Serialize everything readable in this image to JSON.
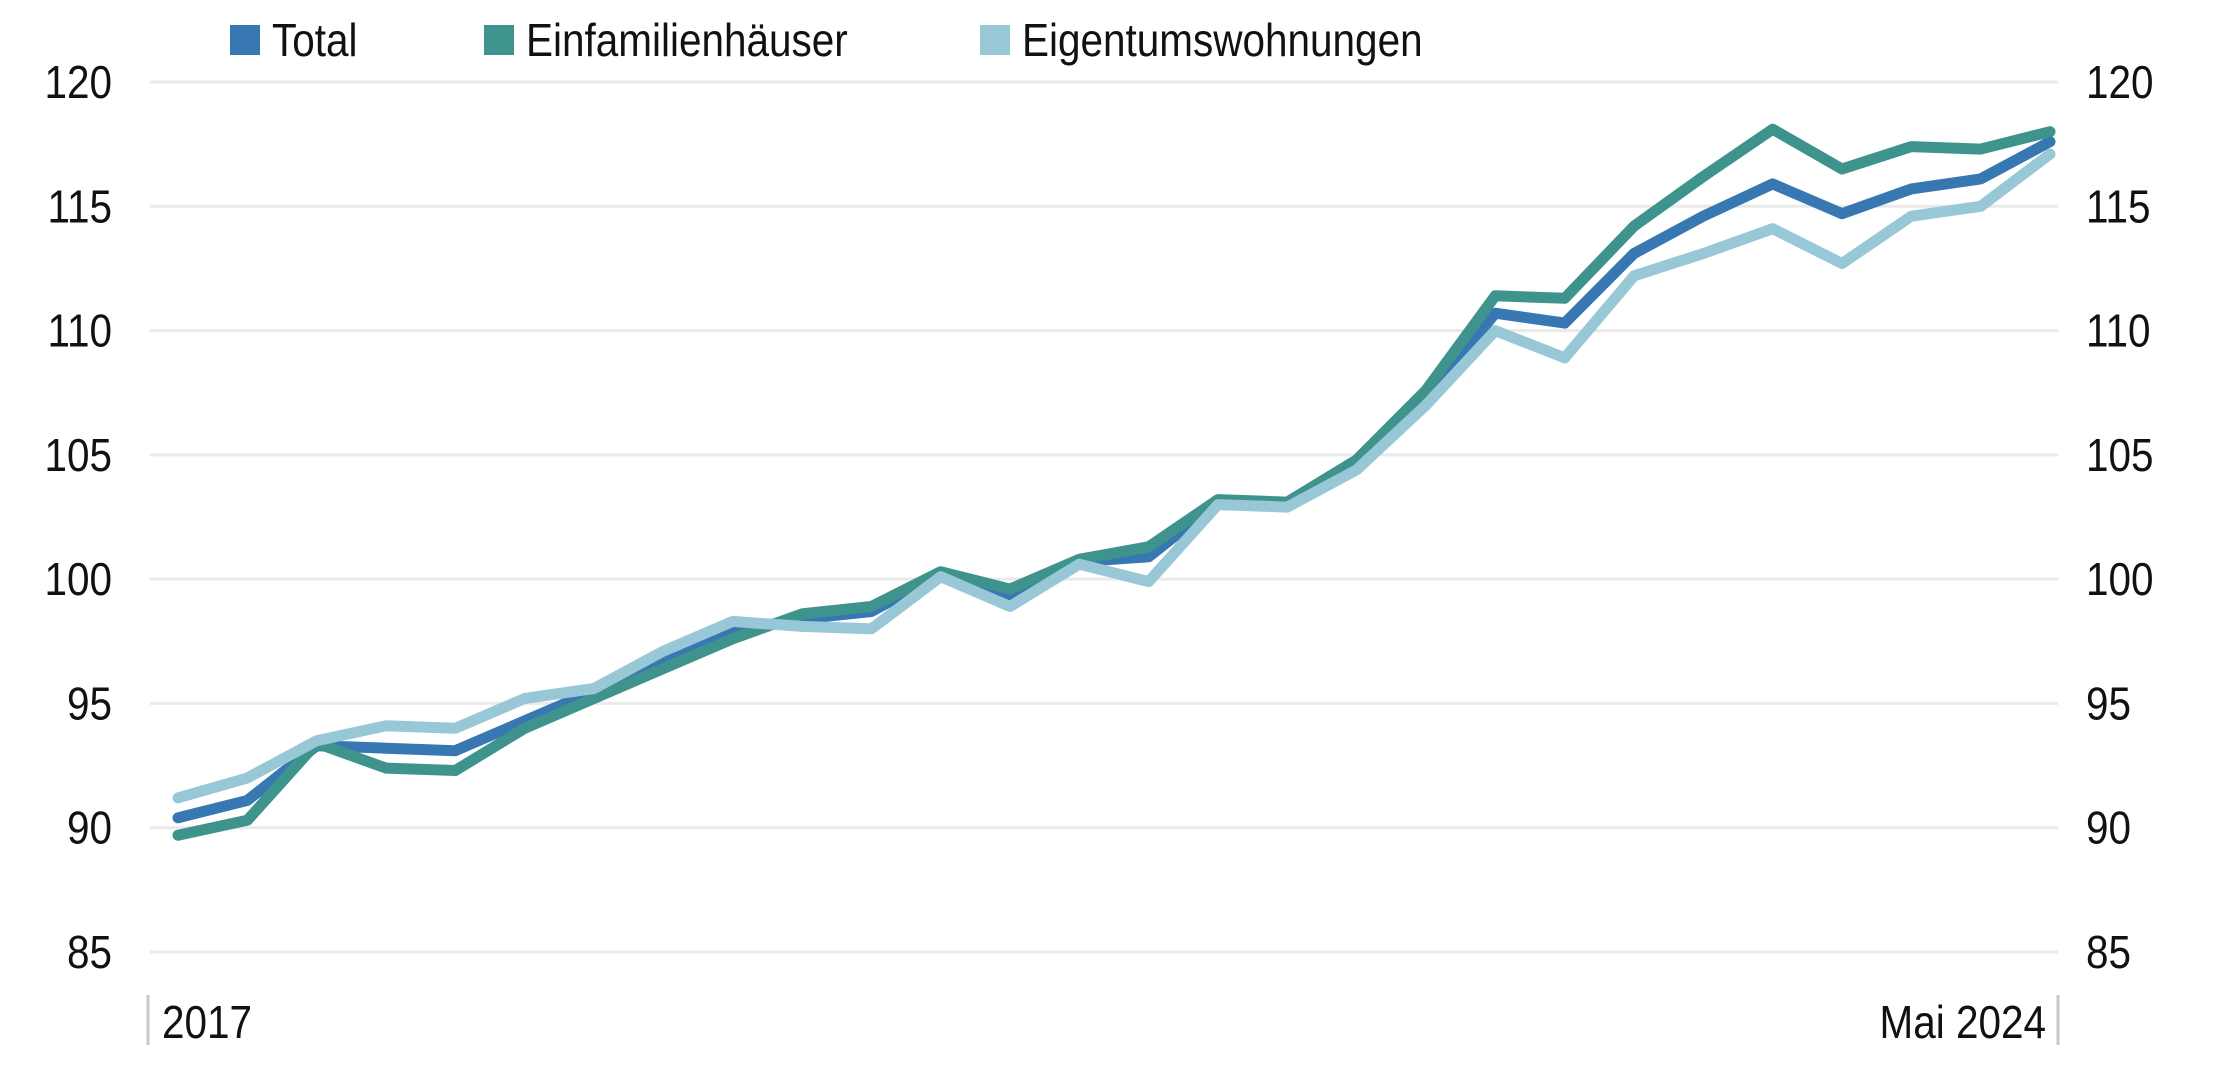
{
  "chart_data": {
    "type": "line",
    "title": "",
    "x_axis": {
      "first_label": "2017",
      "last_label": "Mai 2024",
      "n_points": 28,
      "tick_labels_visible": [
        "2017",
        "Mai 2024"
      ]
    },
    "y_axis": {
      "min": 85,
      "max": 120,
      "tick_step": 5,
      "ticks": [
        85,
        90,
        95,
        100,
        105,
        110,
        115,
        120
      ],
      "labels_shown_on": "both-sides",
      "gridlines": true
    },
    "legend_position": "top",
    "series": [
      {
        "name": "Total",
        "color": "#3778b2",
        "values": [
          90.4,
          91.1,
          93.3,
          93.2,
          93.1,
          94.3,
          95.5,
          96.7,
          97.9,
          98.4,
          98.7,
          100.2,
          99.3,
          100.7,
          100.9,
          103.1,
          103.0,
          104.6,
          107.3,
          110.7,
          110.3,
          113.1,
          114.6,
          115.9,
          114.7,
          115.7,
          116.1,
          117.6
        ]
      },
      {
        "name": "Einfamilienhäuser",
        "color": "#3e948c",
        "values": [
          89.7,
          90.3,
          93.4,
          92.4,
          92.3,
          94.0,
          95.2,
          96.4,
          97.6,
          98.6,
          98.9,
          100.3,
          99.6,
          100.8,
          101.3,
          103.2,
          103.1,
          104.8,
          107.6,
          111.4,
          111.3,
          114.2,
          116.2,
          118.1,
          116.5,
          117.4,
          117.3,
          118.0
        ]
      },
      {
        "name": "Eigentumswohnungen",
        "color": "#98c8d6",
        "values": [
          91.2,
          92.0,
          93.5,
          94.1,
          94.0,
          95.2,
          95.6,
          97.1,
          98.3,
          98.1,
          98.0,
          100.1,
          98.9,
          100.6,
          99.9,
          103.0,
          102.9,
          104.4,
          107.0,
          110.0,
          108.9,
          112.2,
          113.1,
          114.1,
          112.7,
          114.6,
          115.0,
          117.1
        ]
      }
    ],
    "colors": {
      "gridline": "#eaeaea",
      "axis_tick": "#c9c9c9",
      "text": "#111111",
      "background": "#ffffff"
    }
  }
}
